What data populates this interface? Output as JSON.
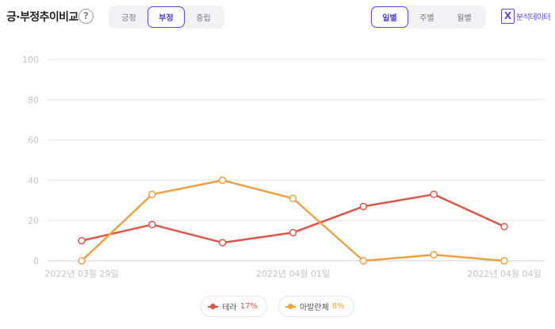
{
  "header": {
    "title": "긍·부정추이비교",
    "help_glyph": "?",
    "sentiment_tabs": [
      {
        "label": "긍정",
        "active": false
      },
      {
        "label": "부정",
        "active": true
      },
      {
        "label": "중립",
        "active": false
      }
    ],
    "period_tabs": [
      {
        "label": "일별",
        "active": true
      },
      {
        "label": "주별",
        "active": false
      },
      {
        "label": "월별",
        "active": false
      }
    ],
    "export_glyph": "X",
    "export_label": "분석데이터"
  },
  "colors": {
    "accent": "#5a49e6",
    "series_1": "#e05545",
    "series_2": "#f0a040",
    "grid": "#e6e6e6",
    "tick_text": "#c4c4c4"
  },
  "legend": [
    {
      "name": "테라",
      "percent": "17%"
    },
    {
      "name": "아발란체",
      "percent": "8%"
    }
  ],
  "chart_data": {
    "type": "line",
    "title": "",
    "xlabel": "",
    "ylabel": "",
    "ylim": [
      0,
      100
    ],
    "yticks": [
      0,
      20,
      40,
      60,
      80,
      100
    ],
    "x": [
      "2022-03-29",
      "2022-03-30",
      "2022-03-31",
      "2022-04-01",
      "2022-04-02",
      "2022-04-03",
      "2022-04-04"
    ],
    "x_tick_labels": [
      "2022년 03월 29일",
      "",
      "",
      "2022년 04월 01일",
      "",
      "",
      "2022년 04월 04일"
    ],
    "grid": true,
    "legend_position": "bottom-center",
    "series": [
      {
        "name": "테라",
        "values": [
          10,
          18,
          9,
          14,
          27,
          33,
          17
        ]
      },
      {
        "name": "아발란체",
        "values": [
          0,
          33,
          40,
          31,
          0,
          3,
          0
        ]
      }
    ]
  }
}
